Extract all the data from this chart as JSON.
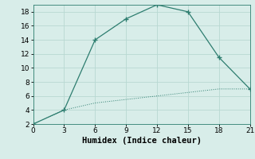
{
  "line1_x": [
    0,
    3,
    6,
    9,
    12,
    15,
    18,
    21
  ],
  "line1_y": [
    2,
    4,
    14,
    17,
    19,
    18,
    11.5,
    7
  ],
  "line2_x": [
    0,
    3,
    6,
    9,
    12,
    15,
    18,
    21
  ],
  "line2_y": [
    2,
    4,
    5,
    5.5,
    6,
    6.5,
    7,
    7
  ],
  "line_color": "#2d7d6f",
  "bg_color": "#d8ede9",
  "grid_color": "#b8d8d2",
  "xlabel": "Humidex (Indice chaleur)",
  "xlim": [
    0,
    21
  ],
  "ylim": [
    2,
    19
  ],
  "xticks": [
    0,
    3,
    6,
    9,
    12,
    15,
    18,
    21
  ],
  "yticks": [
    2,
    4,
    6,
    8,
    10,
    12,
    14,
    16,
    18
  ],
  "label_fontsize": 7.5,
  "tick_fontsize": 6.5
}
